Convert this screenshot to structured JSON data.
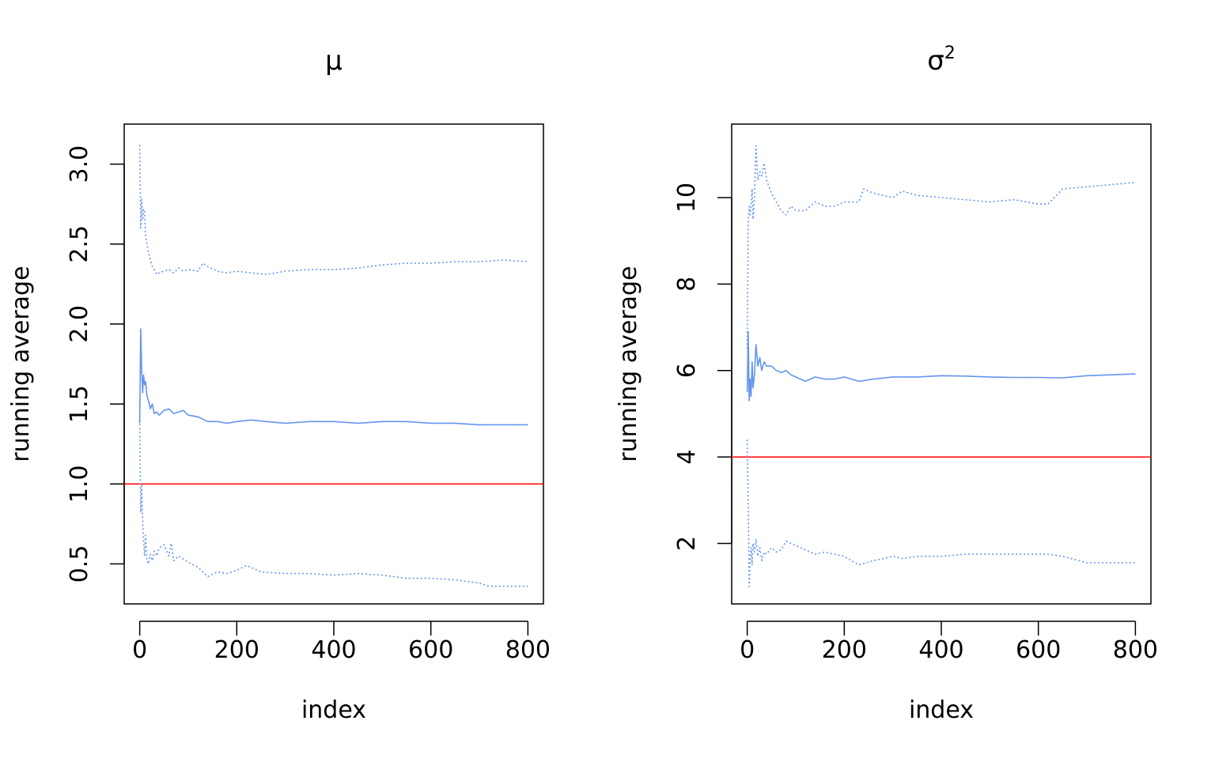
{
  "chart_data": [
    {
      "type": "line",
      "title": "μ",
      "xlabel": "index",
      "ylabel": "running average",
      "xlim": [
        0,
        800
      ],
      "ylim": [
        0.25,
        3.25
      ],
      "xticks": [
        0,
        200,
        400,
        600,
        800
      ],
      "xtick_labels": [
        "0",
        "200",
        "400",
        "600",
        "800"
      ],
      "yticks": [
        0.5,
        1.0,
        1.5,
        2.0,
        2.5,
        3.0
      ],
      "ytick_labels": [
        "0.5",
        "1.0",
        "1.5",
        "2.0",
        "2.5",
        "3.0"
      ],
      "reference_line": {
        "y": 1.0,
        "color": "#ff0000"
      },
      "series": [
        {
          "style": "solid",
          "color": "#6495ed",
          "x": [
            0,
            2,
            4,
            6,
            8,
            10,
            12,
            15,
            18,
            22,
            26,
            30,
            35,
            40,
            50,
            60,
            70,
            80,
            90,
            100,
            120,
            140,
            160,
            180,
            200,
            230,
            260,
            300,
            350,
            400,
            450,
            500,
            550,
            600,
            650,
            700,
            750,
            800
          ],
          "y": [
            1.38,
            1.97,
            1.72,
            1.57,
            1.68,
            1.62,
            1.64,
            1.55,
            1.52,
            1.47,
            1.5,
            1.44,
            1.45,
            1.43,
            1.46,
            1.47,
            1.44,
            1.45,
            1.46,
            1.43,
            1.42,
            1.39,
            1.39,
            1.38,
            1.39,
            1.4,
            1.39,
            1.38,
            1.39,
            1.39,
            1.38,
            1.39,
            1.39,
            1.38,
            1.38,
            1.37,
            1.37,
            1.37
          ]
        },
        {
          "style": "dotted",
          "color": "#6495ed",
          "x": [
            0,
            2,
            4,
            6,
            8,
            10,
            12,
            15,
            18,
            22,
            26,
            30,
            35,
            40,
            50,
            60,
            70,
            80,
            90,
            100,
            120,
            130,
            140,
            160,
            180,
            200,
            230,
            260,
            300,
            350,
            400,
            450,
            500,
            550,
            600,
            650,
            700,
            750,
            800
          ],
          "y": [
            3.12,
            2.6,
            2.78,
            2.65,
            2.72,
            2.7,
            2.55,
            2.5,
            2.45,
            2.4,
            2.36,
            2.34,
            2.31,
            2.32,
            2.33,
            2.34,
            2.32,
            2.35,
            2.33,
            2.34,
            2.33,
            2.38,
            2.36,
            2.33,
            2.32,
            2.33,
            2.32,
            2.31,
            2.33,
            2.34,
            2.34,
            2.35,
            2.37,
            2.38,
            2.38,
            2.39,
            2.39,
            2.4,
            2.39
          ]
        },
        {
          "style": "dotted",
          "color": "#6495ed",
          "x": [
            0,
            2,
            4,
            6,
            8,
            10,
            12,
            15,
            18,
            22,
            26,
            30,
            35,
            40,
            50,
            60,
            65,
            70,
            80,
            90,
            100,
            120,
            140,
            160,
            180,
            200,
            220,
            250,
            300,
            350,
            400,
            450,
            500,
            550,
            600,
            650,
            700,
            720,
            750,
            800
          ],
          "y": [
            1.4,
            0.82,
            1.0,
            0.78,
            0.65,
            0.55,
            0.68,
            0.52,
            0.5,
            0.56,
            0.52,
            0.58,
            0.55,
            0.6,
            0.62,
            0.55,
            0.63,
            0.52,
            0.55,
            0.53,
            0.51,
            0.48,
            0.42,
            0.45,
            0.44,
            0.46,
            0.49,
            0.45,
            0.44,
            0.44,
            0.43,
            0.44,
            0.43,
            0.41,
            0.41,
            0.4,
            0.38,
            0.36,
            0.36,
            0.36
          ]
        }
      ]
    },
    {
      "type": "line",
      "title": "σ²",
      "xlabel": "index",
      "ylabel": "running average",
      "xlim": [
        0,
        800
      ],
      "ylim": [
        0.6,
        11.7
      ],
      "xticks": [
        0,
        200,
        400,
        600,
        800
      ],
      "xtick_labels": [
        "0",
        "200",
        "400",
        "600",
        "800"
      ],
      "yticks": [
        2,
        4,
        6,
        8,
        10
      ],
      "ytick_labels": [
        "2",
        "4",
        "6",
        "8",
        "10"
      ],
      "reference_line": {
        "y": 4,
        "color": "#ff0000"
      },
      "series": [
        {
          "style": "solid",
          "color": "#6495ed",
          "x": [
            0,
            2,
            4,
            6,
            8,
            10,
            12,
            15,
            18,
            22,
            26,
            30,
            35,
            40,
            50,
            60,
            70,
            80,
            90,
            100,
            120,
            140,
            160,
            180,
            200,
            230,
            260,
            300,
            350,
            400,
            450,
            500,
            550,
            600,
            650,
            700,
            750,
            800
          ],
          "y": [
            5.5,
            6.9,
            5.3,
            5.8,
            5.4,
            6.2,
            5.6,
            5.9,
            6.6,
            6.1,
            6.3,
            6.0,
            6.2,
            6.1,
            6.1,
            6.0,
            5.95,
            6.0,
            5.9,
            5.85,
            5.75,
            5.85,
            5.8,
            5.8,
            5.85,
            5.75,
            5.8,
            5.85,
            5.85,
            5.88,
            5.87,
            5.85,
            5.84,
            5.84,
            5.83,
            5.88,
            5.9,
            5.92
          ]
        },
        {
          "style": "dotted",
          "color": "#6495ed",
          "x": [
            0,
            2,
            4,
            6,
            8,
            10,
            12,
            15,
            18,
            22,
            26,
            30,
            35,
            40,
            50,
            60,
            70,
            80,
            90,
            100,
            120,
            140,
            160,
            180,
            200,
            230,
            240,
            260,
            300,
            320,
            350,
            400,
            450,
            500,
            550,
            600,
            620,
            650,
            700,
            750,
            800
          ],
          "y": [
            6.5,
            9.5,
            9.8,
            9.6,
            9.8,
            10.2,
            9.5,
            10.0,
            11.2,
            10.4,
            10.6,
            10.5,
            10.8,
            10.4,
            10.1,
            9.9,
            9.7,
            9.6,
            9.8,
            9.7,
            9.7,
            9.9,
            9.8,
            9.8,
            9.9,
            9.9,
            10.2,
            10.1,
            10.0,
            10.15,
            10.05,
            10.0,
            9.95,
            9.9,
            9.95,
            9.85,
            9.85,
            10.2,
            10.25,
            10.3,
            10.35
          ]
        },
        {
          "style": "dotted",
          "color": "#6495ed",
          "x": [
            0,
            2,
            4,
            6,
            8,
            10,
            12,
            15,
            18,
            22,
            26,
            30,
            35,
            40,
            50,
            60,
            70,
            80,
            90,
            100,
            120,
            140,
            160,
            180,
            200,
            230,
            260,
            300,
            320,
            350,
            400,
            450,
            500,
            550,
            600,
            620,
            650,
            700,
            750,
            800
          ],
          "y": [
            4.4,
            2.9,
            1.0,
            1.6,
            1.9,
            1.5,
            2.0,
            1.8,
            2.1,
            1.7,
            1.9,
            1.6,
            1.8,
            1.75,
            1.9,
            1.8,
            1.85,
            2.05,
            2.0,
            1.95,
            1.85,
            1.75,
            1.8,
            1.75,
            1.7,
            1.5,
            1.6,
            1.7,
            1.65,
            1.7,
            1.7,
            1.75,
            1.75,
            1.75,
            1.75,
            1.75,
            1.7,
            1.55,
            1.55,
            1.55
          ]
        }
      ]
    }
  ]
}
